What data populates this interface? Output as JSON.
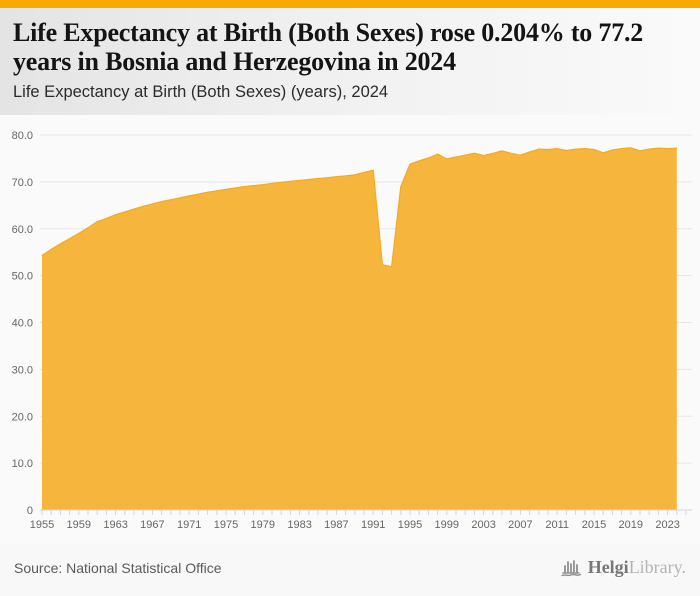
{
  "header": {
    "title": "Life Expectancy at Birth (Both Sexes) rose 0.204% to 77.2 years in Bosnia and Herzegovina in 2024",
    "subtitle": "Life Expectancy at Birth (Both Sexes) (years), 2024"
  },
  "footer": {
    "source": "Source: National Statistical Office",
    "logo_part1": "Helgi",
    "logo_part2": "Library."
  },
  "colors": {
    "accent_bar": "#F7AB00",
    "area_fill": "#F6B53D",
    "area_stroke": "#F3AA1E",
    "gridline": "#E6E6E6",
    "axis_line": "#CCD6EB",
    "tick": "#CCD6EB",
    "axis_label": "#666666",
    "plot_background": "#FAFAFA",
    "logo_gray": "#8f8f8f"
  },
  "chart_data": {
    "type": "area",
    "title": "Life Expectancy at Birth (Both Sexes) (years), 2024",
    "xlabel": "",
    "ylabel": "",
    "ylim": [
      0,
      80
    ],
    "yticks": [
      0,
      10,
      20,
      30,
      40,
      50,
      60,
      70,
      80
    ],
    "xtick_start": 1955,
    "xtick_label_step": 4,
    "xtick_last_label": 2023,
    "grid": "horizontal",
    "legend": "none",
    "x": [
      1955,
      1956,
      1957,
      1958,
      1959,
      1960,
      1961,
      1962,
      1963,
      1964,
      1965,
      1966,
      1967,
      1968,
      1969,
      1970,
      1971,
      1972,
      1973,
      1974,
      1975,
      1976,
      1977,
      1978,
      1979,
      1980,
      1981,
      1982,
      1983,
      1984,
      1985,
      1986,
      1987,
      1988,
      1989,
      1990,
      1991,
      1992,
      1993,
      1994,
      1995,
      1996,
      1997,
      1998,
      1999,
      2000,
      2001,
      2002,
      2003,
      2004,
      2005,
      2006,
      2007,
      2008,
      2009,
      2010,
      2011,
      2012,
      2013,
      2014,
      2015,
      2016,
      2017,
      2018,
      2019,
      2020,
      2021,
      2022,
      2023,
      2024
    ],
    "values": [
      54.3,
      55.6,
      56.8,
      57.9,
      59.0,
      60.2,
      61.5,
      62.2,
      63.0,
      63.6,
      64.2,
      64.8,
      65.3,
      65.8,
      66.2,
      66.6,
      67.0,
      67.4,
      67.8,
      68.1,
      68.4,
      68.7,
      69.0,
      69.2,
      69.4,
      69.7,
      69.9,
      70.1,
      70.3,
      70.5,
      70.7,
      70.9,
      71.1,
      71.3,
      71.5,
      72.0,
      72.5,
      52.3,
      51.9,
      69.0,
      73.8,
      74.5,
      75.1,
      75.9,
      74.9,
      75.3,
      75.7,
      76.1,
      75.6,
      76.1,
      76.6,
      76.1,
      75.7,
      76.4,
      77.0,
      76.9,
      77.1,
      76.7,
      77.0,
      77.1,
      76.9,
      76.2,
      76.8,
      77.1,
      77.3,
      76.6,
      77.0,
      77.2,
      77.1,
      77.2
    ]
  }
}
